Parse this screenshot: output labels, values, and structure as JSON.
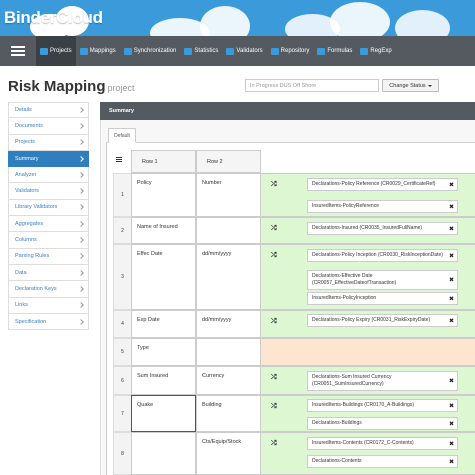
{
  "brand": "BinderCloud",
  "nav": {
    "items": [
      {
        "label": "Projects",
        "active": true
      },
      {
        "label": "Mappings",
        "active": false
      },
      {
        "label": "Synchronization",
        "active": false
      },
      {
        "label": "Statistics",
        "active": false
      },
      {
        "label": "Validators",
        "active": false
      },
      {
        "label": "Repository",
        "active": false
      },
      {
        "label": "Formulas",
        "active": false
      },
      {
        "label": "RegExp",
        "active": false
      }
    ]
  },
  "page": {
    "title": "Risk Mapping",
    "subtitle": "project",
    "status_placeholder": "In Progress DUS Off Shore",
    "status_button": "Change Status"
  },
  "sidebar": {
    "items": [
      {
        "label": "Details",
        "active": false
      },
      {
        "label": "Documents",
        "active": false
      },
      {
        "label": "Projects",
        "active": false
      },
      {
        "label": "Summary",
        "active": true
      },
      {
        "label": "Analyzer",
        "active": false
      },
      {
        "label": "Validators",
        "active": false
      },
      {
        "label": "Library Validators",
        "active": false
      },
      {
        "label": "Aggregates",
        "active": false
      },
      {
        "label": "Columns",
        "active": false
      },
      {
        "label": "Parsing Rules",
        "active": false
      },
      {
        "label": "Data",
        "active": false
      },
      {
        "label": "Declaration Keys",
        "active": false
      },
      {
        "label": "Links",
        "active": false
      },
      {
        "label": "Specification",
        "active": false
      }
    ]
  },
  "panel": {
    "title": "Summary",
    "tab": "Default"
  },
  "grid": {
    "headers": [
      "Row 1",
      "Row 2"
    ],
    "rows": [
      {
        "num": "1",
        "c1": "Policy",
        "c2": "Number",
        "mappings": [
          "Declarations-Policy Reference (CR0029_CertificateRef)",
          "InsuredItems-PolicyReference"
        ]
      },
      {
        "num": "2",
        "c1": "Name of Insured",
        "c2": "",
        "mappings": [
          "Declarations-Insured (CR0035_InsuredFullName)"
        ]
      },
      {
        "num": "3",
        "c1": "Effec Date",
        "c2": "dd/mm/yyyy",
        "mappings": [
          "Declarations-Policy Inception (CR0030_RiskInceptionDate)",
          "Declarations-Effective Date (CR0057_EffectiveDateofTransaction)",
          "InsuredItems-PolicyInception"
        ]
      },
      {
        "num": "4",
        "c1": "Exp Date",
        "c2": "dd/mm/yyyy",
        "mappings": [
          "Declarations-Policy Expiry (CR0031_RiskExpiryDate)"
        ]
      },
      {
        "num": "5",
        "c1": "Type",
        "c2": "",
        "mappings": []
      },
      {
        "num": "6",
        "c1": "Sum Insured",
        "c2": "Currency",
        "mappings": [
          "Declarations-Sum Insured Currency (CR0051_SumInsuredCurrency)"
        ]
      },
      {
        "num": "7",
        "c1": "Quake",
        "c2": "Building",
        "mappings": [
          "InsuredItems-Buildings (CR0170_A-Buildings)",
          "Declarations-Buildings"
        ]
      },
      {
        "num": "8",
        "c1": "",
        "c2": "Cts/Equip/Stock",
        "mappings": [
          "InsuredItems-Contents (CR0172_C-Contents)",
          "Declarations-Contents"
        ]
      }
    ]
  },
  "icons": {
    "shuffle": "shuffle-icon",
    "remove": "close-icon",
    "menu": "hamburger-icon",
    "list": "list-icon"
  },
  "colors": {
    "banner": "#3b9ad9",
    "nav": "#555a60",
    "active_sidebar": "#2f7fbf",
    "mapped": "#ddf7d3",
    "unmapped": "#fde5cf"
  }
}
